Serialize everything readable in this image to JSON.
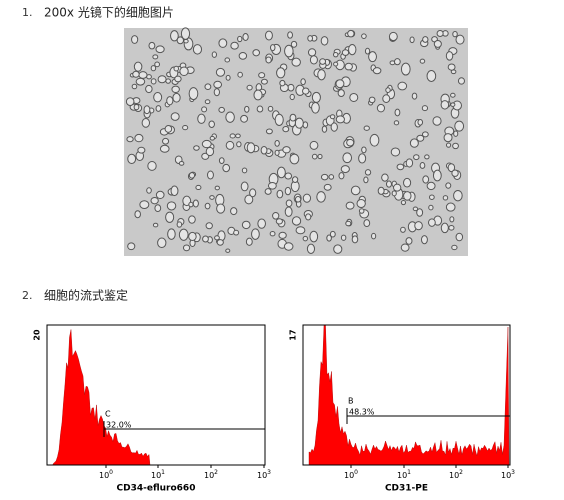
{
  "items": [
    {
      "number": "1.",
      "text": "200x 光镜下的细胞图片"
    },
    {
      "number": "2.",
      "text": "细胞的流式鉴定"
    }
  ],
  "figures": [
    {
      "y_top": "20",
      "gate": "C",
      "percent": "32.0%",
      "x_label": "CD34-efluro660",
      "x_ticks": [
        {
          "base": "10",
          "sup": "0"
        },
        {
          "base": "10",
          "sup": "1"
        },
        {
          "base": "10",
          "sup": "2"
        },
        {
          "base": "10",
          "sup": "3"
        }
      ]
    },
    {
      "y_top": "17",
      "gate": "B",
      "percent": "48.3%",
      "x_label": "CD31-PE",
      "x_ticks": [
        {
          "base": "10",
          "sup": "0"
        },
        {
          "base": "10",
          "sup": "1"
        },
        {
          "base": "10",
          "sup": "2"
        },
        {
          "base": "10",
          "sup": "3"
        }
      ]
    }
  ]
}
